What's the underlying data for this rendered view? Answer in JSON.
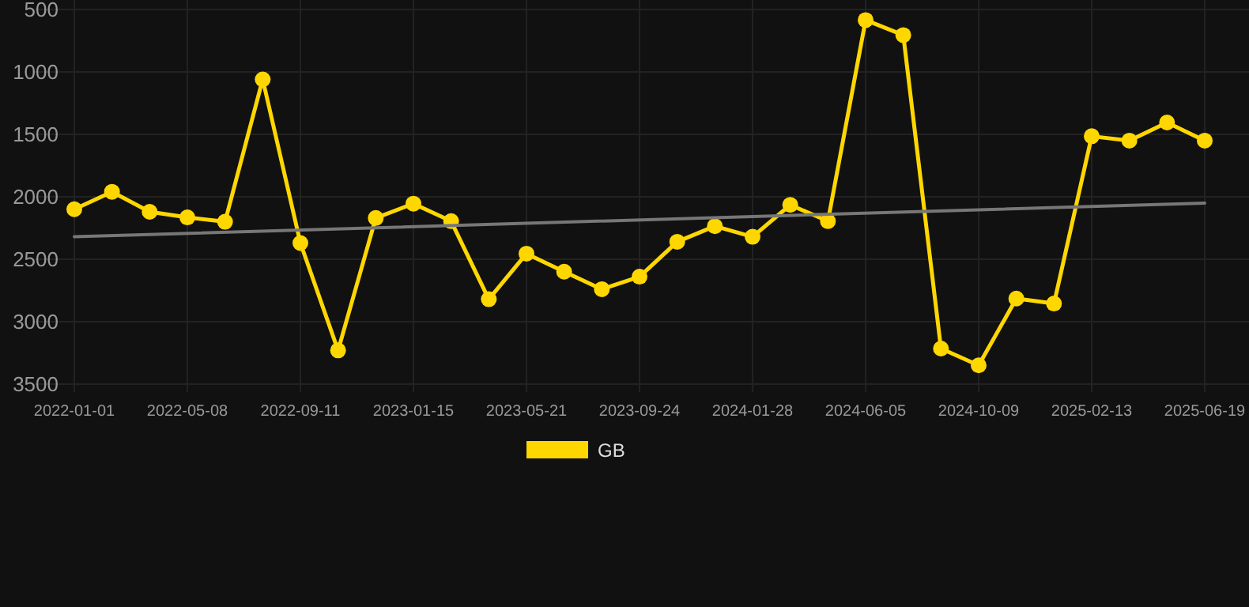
{
  "chart_data": {
    "type": "line",
    "categories": [
      "2022-01-01",
      null,
      null,
      "2022-05-08",
      null,
      null,
      "2022-09-11",
      null,
      null,
      "2023-01-15",
      null,
      null,
      "2023-05-21",
      null,
      null,
      "2023-09-24",
      null,
      null,
      "2024-01-28",
      null,
      null,
      "2024-06-05",
      null,
      null,
      "2024-10-09",
      null,
      null,
      "2025-02-13",
      null,
      null,
      "2025-06-19"
    ],
    "series": [
      {
        "name": "GB",
        "color": "#ffd700",
        "marker": "circle",
        "values": [
          2100,
          1960,
          2120,
          2165,
          2200,
          1060,
          2370,
          3230,
          2170,
          2055,
          2195,
          2820,
          2455,
          2600,
          2740,
          2640,
          2360,
          2235,
          2320,
          2065,
          2195,
          585,
          705,
          3215,
          3350,
          2815,
          2855,
          1515,
          1550,
          1405,
          1550
        ]
      },
      {
        "color": "#777777",
        "marker": "none",
        "values": [
          2320,
          null,
          null,
          null,
          null,
          null,
          null,
          null,
          null,
          null,
          null,
          null,
          null,
          null,
          null,
          null,
          null,
          null,
          null,
          null,
          null,
          null,
          null,
          null,
          null,
          null,
          null,
          null,
          null,
          null,
          2050
        ]
      }
    ],
    "ylim": [
      3500,
      500
    ],
    "yticks": [
      500,
      1000,
      1500,
      2000,
      2500,
      3000,
      3500
    ],
    "grid": true,
    "legend": "bottom"
  }
}
